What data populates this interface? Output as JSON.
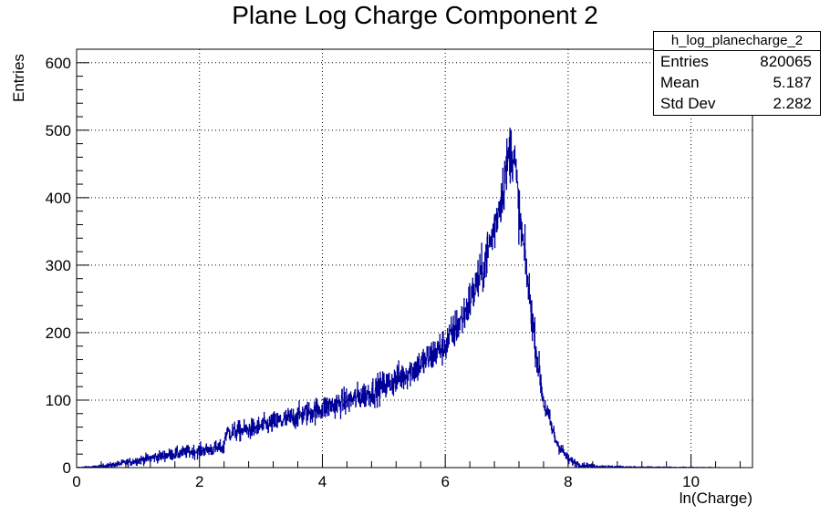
{
  "chart_data": {
    "type": "histogram",
    "title": "Plane Log Charge Component 2",
    "xlabel": "ln(Charge)",
    "ylabel": "Entries",
    "xlim": [
      0,
      11
    ],
    "ylim": [
      0,
      620
    ],
    "xticks": [
      0,
      2,
      4,
      6,
      8,
      10
    ],
    "yticks": [
      0,
      100,
      200,
      300,
      400,
      500,
      600
    ],
    "grid": true,
    "line_color": "#000099",
    "envelope_x": [
      0.0,
      0.3,
      0.6,
      0.9,
      1.2,
      1.5,
      1.8,
      2.1,
      2.4,
      2.42,
      2.8,
      3.2,
      3.6,
      4.0,
      4.4,
      4.8,
      5.2,
      5.6,
      6.0,
      6.3,
      6.6,
      6.8,
      6.95,
      7.05,
      7.12,
      7.2,
      7.35,
      7.5,
      7.6,
      7.8,
      8.0,
      8.2,
      8.5,
      9.0,
      9.5,
      10.0,
      10.5,
      11.0
    ],
    "envelope_y": [
      0,
      1,
      4,
      9,
      14,
      19,
      23,
      26,
      30,
      51,
      56,
      66,
      76,
      88,
      98,
      112,
      130,
      153,
      182,
      225,
      290,
      355,
      420,
      470,
      465,
      380,
      270,
      160,
      98,
      40,
      12,
      4,
      1.5,
      0.5,
      0.2,
      0.1,
      0,
      0
    ],
    "stats": {
      "name": "h_log_planecharge_2",
      "entries_label": "Entries",
      "entries": "820065",
      "mean_label": "Mean",
      "mean": "5.187",
      "stddev_label": "Std Dev",
      "stddev": "2.282"
    }
  }
}
